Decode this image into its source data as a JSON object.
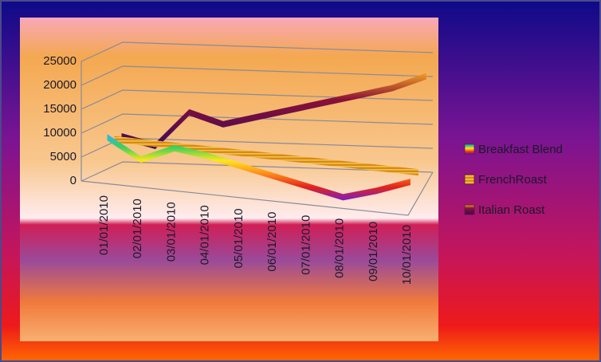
{
  "chart_data": {
    "type": "line",
    "categories": [
      "01/01/2010",
      "02/01/2010",
      "03/01/2010",
      "04/01/2010",
      "05/01/2010",
      "06/01/2010",
      "07/01/2010",
      "08/01/2010",
      "09/01/2010",
      "10/01/2010"
    ],
    "series": [
      {
        "name": "Breakfast Blend",
        "values": [
          8000,
          4000,
          7000,
          6000,
          4500,
          3000,
          1500,
          0,
          2000,
          4500
        ]
      },
      {
        "name": "FrenchRoast",
        "values": [
          6000,
          5800,
          5600,
          5400,
          5200,
          5000,
          4800,
          4600,
          4400,
          4200
        ]
      },
      {
        "name": "Italian Roast",
        "values": [
          5000,
          3500,
          11000,
          9000,
          11000,
          13000,
          15000,
          17000,
          19000,
          22000
        ]
      }
    ],
    "yticks": [
      0,
      5000,
      10000,
      15000,
      20000,
      25000
    ],
    "ylim": [
      0,
      25000
    ],
    "colors": {
      "Breakfast Blend": "#e23a2a",
      "FrenchRoast": "#c9841a",
      "Italian Roast": "#5a1340"
    },
    "legend_position": "right",
    "grid": true
  }
}
